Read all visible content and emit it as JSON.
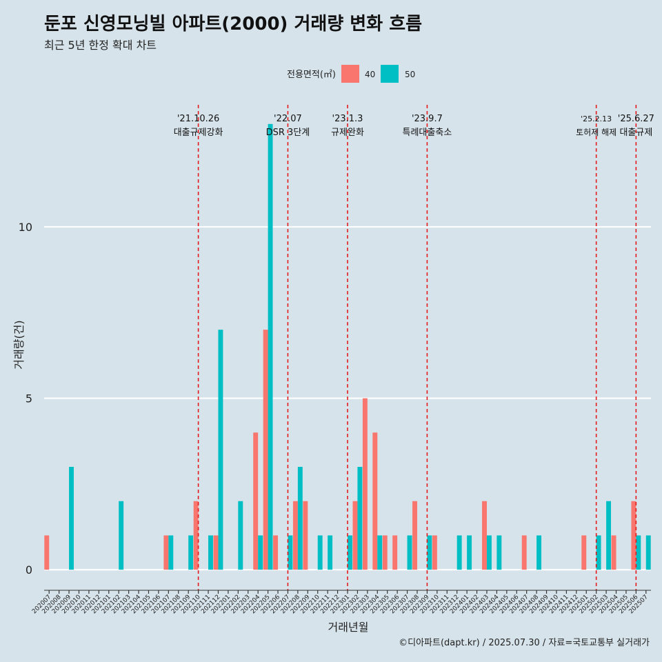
{
  "title": "둔포 신영모닝빌 아파트(2000) 거래량 변화 흐름",
  "subtitle": "최근 5년 한정 확대 차트",
  "caption": "©디아파트(dapt.kr) / 2025.07.30 / 자료=국토교통부 실거래가",
  "colors": {
    "background": "#d6e3ea",
    "series40": "#f8766d",
    "series50": "#00bfc4",
    "event_line": "#e41a1c",
    "grid": "#ffffff"
  },
  "chart_data": {
    "type": "bar",
    "xlabel": "거래년월",
    "ylabel": "거래량(건)",
    "ylim": [
      -0.6,
      13.8
    ],
    "yticks": [
      0,
      5,
      10
    ],
    "grid": true,
    "legend": {
      "title": "전용면적(㎡)",
      "placement": "top",
      "entries": [
        "40",
        "50"
      ]
    },
    "categories": [
      "202007",
      "202008",
      "202009",
      "202010",
      "202011",
      "202012",
      "202101",
      "202102",
      "202103",
      "202104",
      "202105",
      "202106",
      "202107",
      "202108",
      "202109",
      "202110",
      "202111",
      "202112",
      "202201",
      "202202",
      "202203",
      "202204",
      "202205",
      "202206",
      "202207",
      "202208",
      "202209",
      "202210",
      "202211",
      "202212",
      "202301",
      "202302",
      "202303",
      "202304",
      "202305",
      "202306",
      "202307",
      "202308",
      "202309",
      "202310",
      "202311",
      "202312",
      "202401",
      "202402",
      "202403",
      "202404",
      "202405",
      "202406",
      "202407",
      "202408",
      "202409",
      "202410",
      "202411",
      "202412",
      "202501",
      "202502",
      "202503",
      "202504",
      "202505",
      "202506",
      "202507"
    ],
    "series": [
      {
        "name": "40",
        "values": [
          1,
          0,
          0,
          0,
          0,
          0,
          0,
          0,
          0,
          0,
          0,
          0,
          1,
          0,
          0,
          2,
          0,
          1,
          0,
          0,
          0,
          4,
          7,
          1,
          0,
          2,
          2,
          0,
          0,
          0,
          0,
          2,
          5,
          4,
          1,
          1,
          0,
          2,
          0,
          1,
          0,
          0,
          0,
          0,
          2,
          0,
          0,
          0,
          1,
          0,
          0,
          0,
          0,
          0,
          1,
          0,
          0,
          1,
          0,
          2,
          0
        ]
      },
      {
        "name": "50",
        "values": [
          0,
          0,
          3,
          0,
          0,
          0,
          0,
          2,
          0,
          0,
          0,
          0,
          1,
          0,
          1,
          0,
          1,
          7,
          0,
          2,
          0,
          1,
          13,
          0,
          1,
          3,
          0,
          1,
          1,
          0,
          1,
          3,
          0,
          1,
          0,
          0,
          1,
          0,
          1,
          0,
          0,
          1,
          1,
          0,
          1,
          1,
          0,
          0,
          0,
          1,
          0,
          0,
          0,
          0,
          0,
          1,
          2,
          0,
          0,
          1,
          1
        ]
      }
    ],
    "events": [
      {
        "date": "'21.10.26",
        "label": "대출규제강화",
        "at": "202110"
      },
      {
        "date": "'22.07",
        "label": "DSR 3단계",
        "at": "202207"
      },
      {
        "date": "'23.1.3",
        "label": "규제완화",
        "at": "202301"
      },
      {
        "date": "'23.9.7",
        "label": "특례대출축소",
        "at": "202309"
      },
      {
        "date": "'25.2.13",
        "label": "토허제 해제",
        "at": "202502"
      },
      {
        "date": "'25.6.27",
        "label": "대출규제",
        "at": "202506"
      }
    ]
  }
}
